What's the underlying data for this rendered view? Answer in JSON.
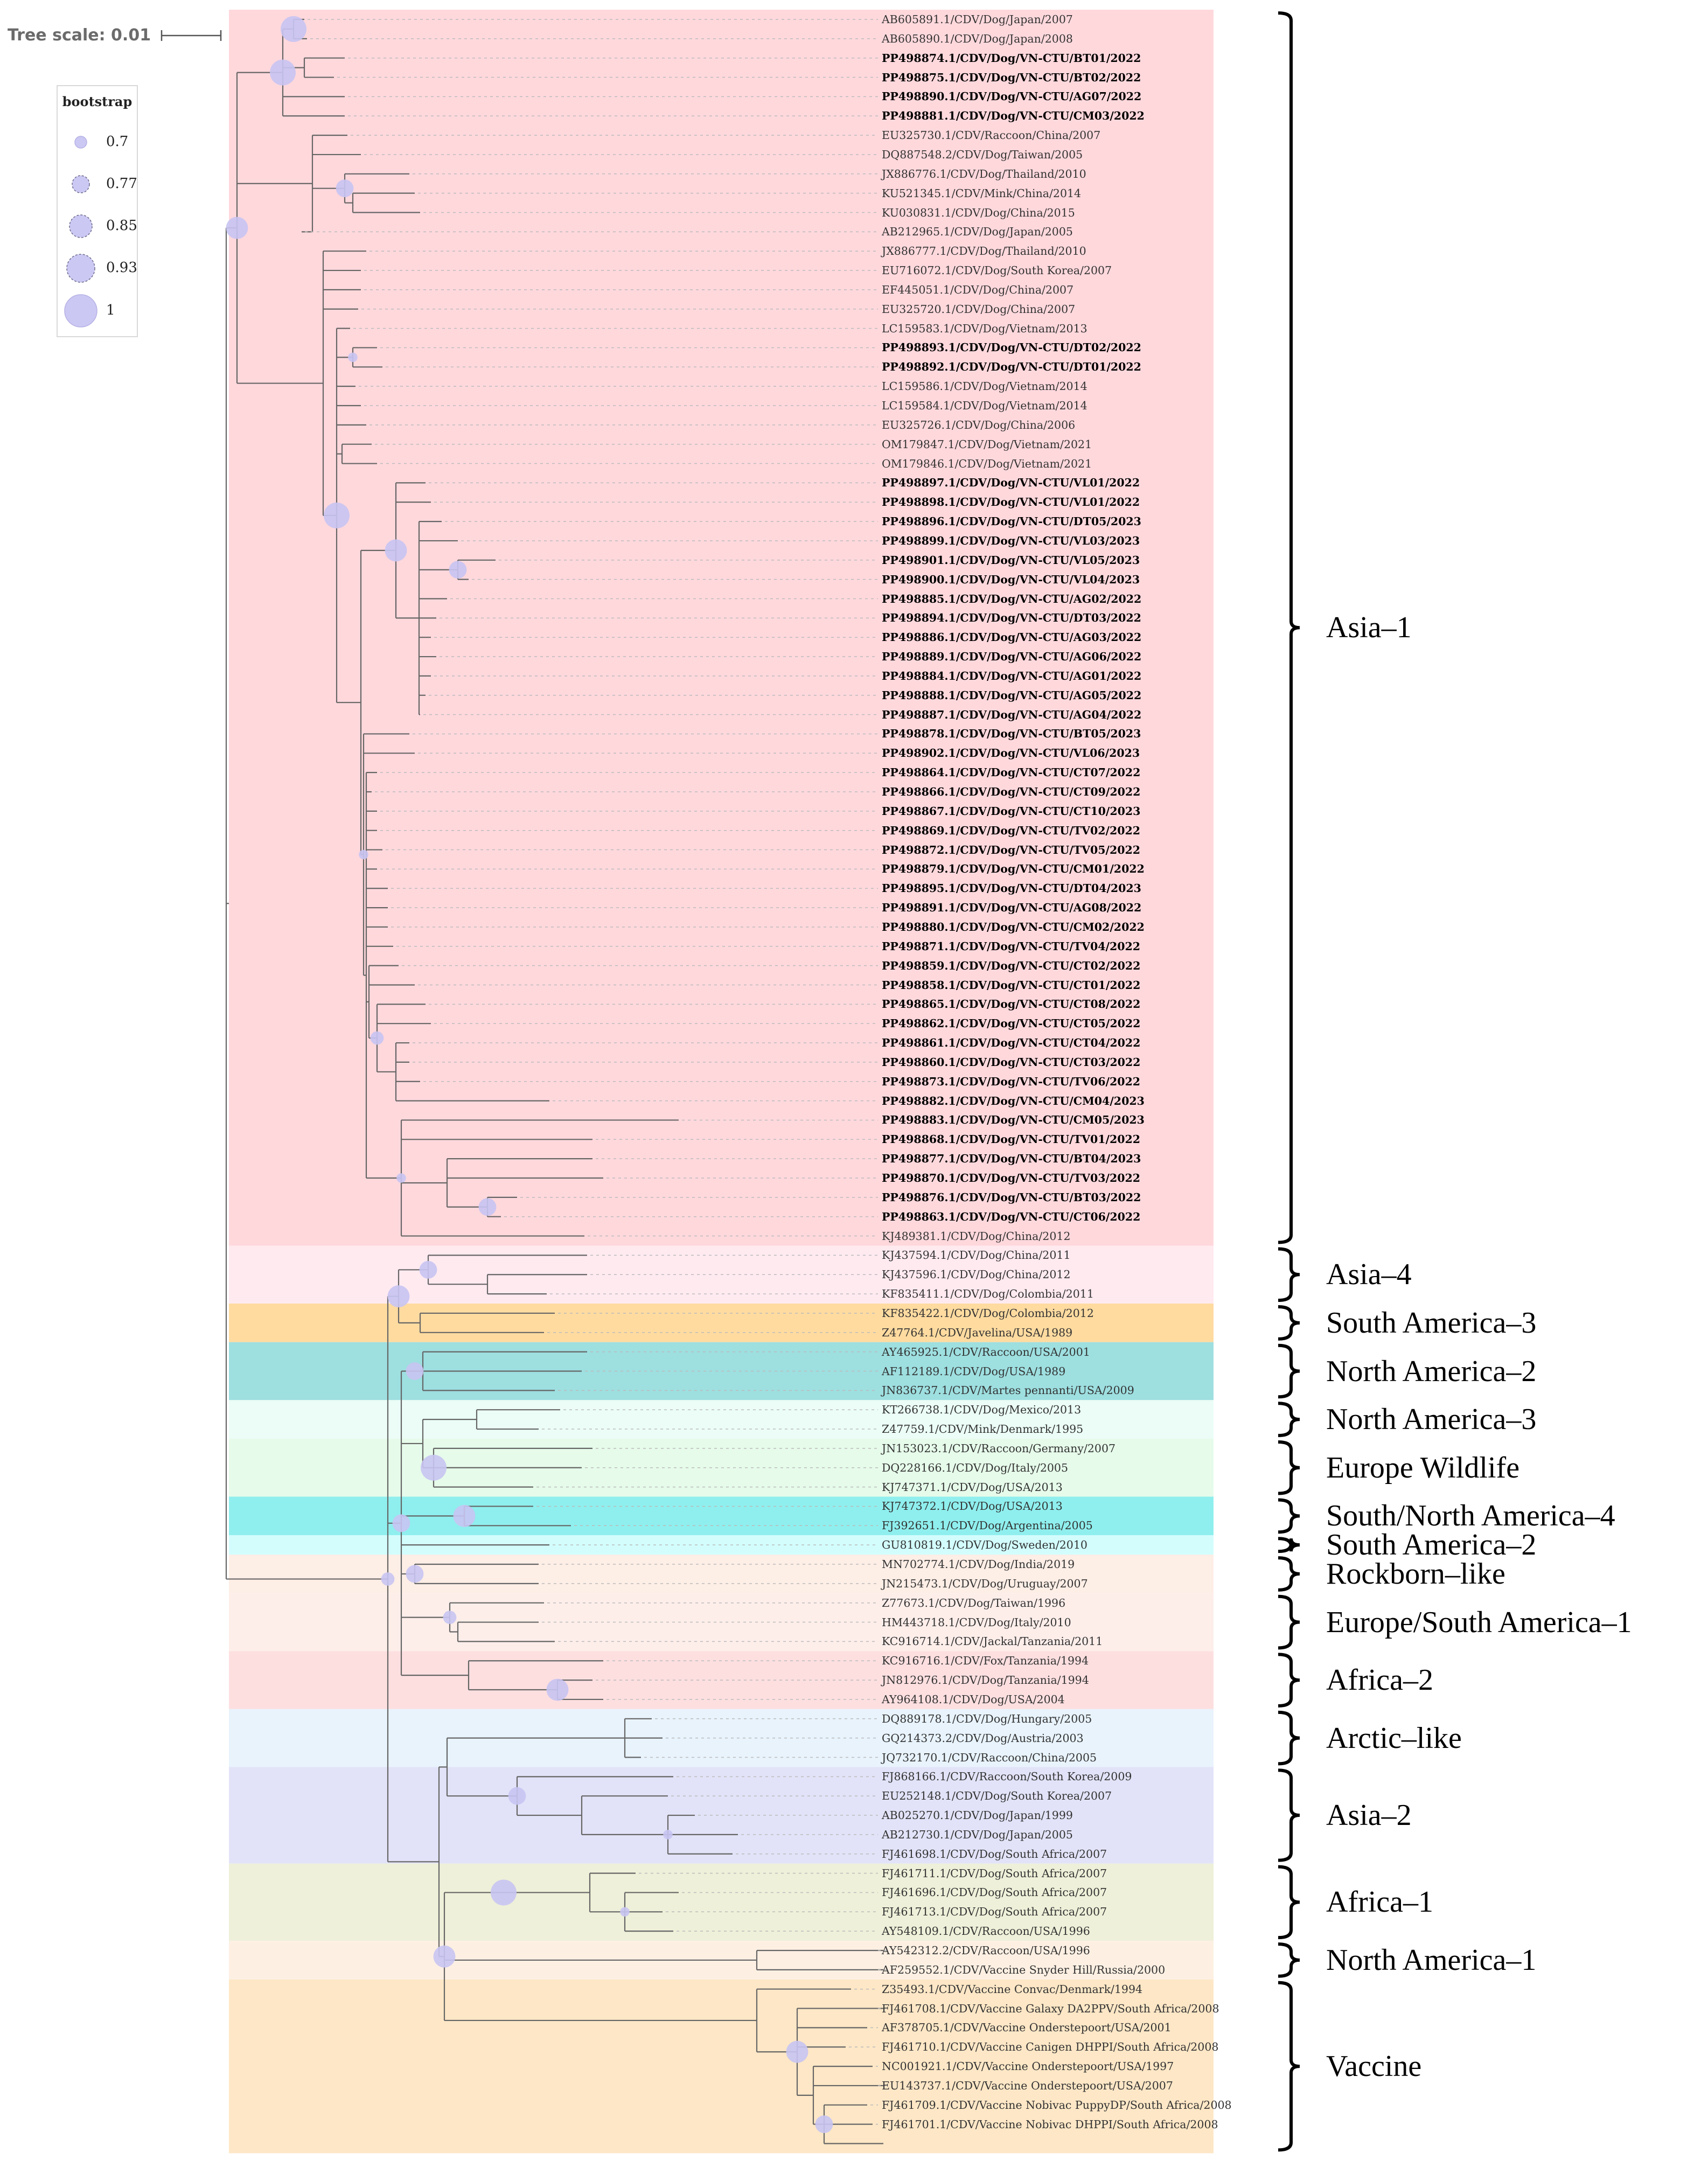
{
  "scale": {
    "title": "Tree scale: 0.01"
  },
  "legend": {
    "title": "bootstrap",
    "items": [
      {
        "label": "0.7",
        "value": 0.7
      },
      {
        "label": "0.77",
        "value": 0.77
      },
      {
        "label": "0.85",
        "value": 0.85
      },
      {
        "label": "0.93",
        "value": 0.93
      },
      {
        "label": "1",
        "value": 1
      }
    ]
  },
  "leaves": [
    {
      "name": "AB605891.1/CDV/Dog/Japan/2007",
      "bold": false
    },
    {
      "name": "AB605890.1/CDV/Dog/Japan/2008",
      "bold": false
    },
    {
      "name": "PP498874.1/CDV/Dog/VN-CTU/BT01/2022",
      "bold": true
    },
    {
      "name": "PP498875.1/CDV/Dog/VN-CTU/BT02/2022",
      "bold": true
    },
    {
      "name": "PP498890.1/CDV/Dog/VN-CTU/AG07/2022",
      "bold": true
    },
    {
      "name": "PP498881.1/CDV/Dog/VN-CTU/CM03/2022",
      "bold": true
    },
    {
      "name": "EU325730.1/CDV/Raccoon/China/2007",
      "bold": false
    },
    {
      "name": "DQ887548.2/CDV/Dog/Taiwan/2005",
      "bold": false
    },
    {
      "name": "JX886776.1/CDV/Dog/Thailand/2010",
      "bold": false
    },
    {
      "name": "KU521345.1/CDV/Mink/China/2014",
      "bold": false
    },
    {
      "name": "KU030831.1/CDV/Dog/China/2015",
      "bold": false
    },
    {
      "name": "AB212965.1/CDV/Dog/Japan/2005",
      "bold": false
    },
    {
      "name": "JX886777.1/CDV/Dog/Thailand/2010",
      "bold": false
    },
    {
      "name": "EU716072.1/CDV/Dog/South Korea/2007",
      "bold": false
    },
    {
      "name": "EF445051.1/CDV/Dog/China/2007",
      "bold": false
    },
    {
      "name": "EU325720.1/CDV/Dog/China/2007",
      "bold": false
    },
    {
      "name": "LC159583.1/CDV/Dog/Vietnam/2013",
      "bold": false
    },
    {
      "name": "PP498893.1/CDV/Dog/VN-CTU/DT02/2022",
      "bold": true
    },
    {
      "name": "PP498892.1/CDV/Dog/VN-CTU/DT01/2022",
      "bold": true
    },
    {
      "name": "LC159586.1/CDV/Dog/Vietnam/2014",
      "bold": false
    },
    {
      "name": "LC159584.1/CDV/Dog/Vietnam/2014",
      "bold": false
    },
    {
      "name": "EU325726.1/CDV/Dog/China/2006",
      "bold": false
    },
    {
      "name": "OM179847.1/CDV/Dog/Vietnam/2021",
      "bold": false
    },
    {
      "name": "OM179846.1/CDV/Dog/Vietnam/2021",
      "bold": false
    },
    {
      "name": "PP498897.1/CDV/Dog/VN-CTU/VL01/2022",
      "bold": true
    },
    {
      "name": "PP498898.1/CDV/Dog/VN-CTU/VL01/2022",
      "bold": true
    },
    {
      "name": "PP498896.1/CDV/Dog/VN-CTU/DT05/2023",
      "bold": true
    },
    {
      "name": "PP498899.1/CDV/Dog/VN-CTU/VL03/2023",
      "bold": true
    },
    {
      "name": "PP498901.1/CDV/Dog/VN-CTU/VL05/2023",
      "bold": true
    },
    {
      "name": "PP498900.1/CDV/Dog/VN-CTU/VL04/2023",
      "bold": true
    },
    {
      "name": "PP498885.1/CDV/Dog/VN-CTU/AG02/2022",
      "bold": true
    },
    {
      "name": "PP498894.1/CDV/Dog/VN-CTU/DT03/2022",
      "bold": true
    },
    {
      "name": "PP498886.1/CDV/Dog/VN-CTU/AG03/2022",
      "bold": true
    },
    {
      "name": "PP498889.1/CDV/Dog/VN-CTU/AG06/2022",
      "bold": true
    },
    {
      "name": "PP498884.1/CDV/Dog/VN-CTU/AG01/2022",
      "bold": true
    },
    {
      "name": "PP498888.1/CDV/Dog/VN-CTU/AG05/2022",
      "bold": true
    },
    {
      "name": "PP498887.1/CDV/Dog/VN-CTU/AG04/2022",
      "bold": true
    },
    {
      "name": "PP498878.1/CDV/Dog/VN-CTU/BT05/2023",
      "bold": true
    },
    {
      "name": "PP498902.1/CDV/Dog/VN-CTU/VL06/2023",
      "bold": true
    },
    {
      "name": "PP498864.1/CDV/Dog/VN-CTU/CT07/2022",
      "bold": true
    },
    {
      "name": "PP498866.1/CDV/Dog/VN-CTU/CT09/2022",
      "bold": true
    },
    {
      "name": "PP498867.1/CDV/Dog/VN-CTU/CT10/2023",
      "bold": true
    },
    {
      "name": "PP498869.1/CDV/Dog/VN-CTU/TV02/2022",
      "bold": true
    },
    {
      "name": "PP498872.1/CDV/Dog/VN-CTU/TV05/2022",
      "bold": true
    },
    {
      "name": "PP498879.1/CDV/Dog/VN-CTU/CM01/2022",
      "bold": true
    },
    {
      "name": "PP498895.1/CDV/Dog/VN-CTU/DT04/2023",
      "bold": true
    },
    {
      "name": "PP498891.1/CDV/Dog/VN-CTU/AG08/2022",
      "bold": true
    },
    {
      "name": "PP498880.1/CDV/Dog/VN-CTU/CM02/2022",
      "bold": true
    },
    {
      "name": "PP498871.1/CDV/Dog/VN-CTU/TV04/2022",
      "bold": true
    },
    {
      "name": "PP498859.1/CDV/Dog/VN-CTU/CT02/2022",
      "bold": true
    },
    {
      "name": "PP498858.1/CDV/Dog/VN-CTU/CT01/2022",
      "bold": true
    },
    {
      "name": "PP498865.1/CDV/Dog/VN-CTU/CT08/2022",
      "bold": true
    },
    {
      "name": "PP498862.1/CDV/Dog/VN-CTU/CT05/2022",
      "bold": true
    },
    {
      "name": "PP498861.1/CDV/Dog/VN-CTU/CT04/2022",
      "bold": true
    },
    {
      "name": "PP498860.1/CDV/Dog/VN-CTU/CT03/2022",
      "bold": true
    },
    {
      "name": "PP498873.1/CDV/Dog/VN-CTU/TV06/2022",
      "bold": true
    },
    {
      "name": "PP498882.1/CDV/Dog/VN-CTU/CM04/2023",
      "bold": true
    },
    {
      "name": "PP498883.1/CDV/Dog/VN-CTU/CM05/2023",
      "bold": true
    },
    {
      "name": "PP498868.1/CDV/Dog/VN-CTU/TV01/2022",
      "bold": true
    },
    {
      "name": "PP498877.1/CDV/Dog/VN-CTU/BT04/2023",
      "bold": true
    },
    {
      "name": "PP498870.1/CDV/Dog/VN-CTU/TV03/2022",
      "bold": true
    },
    {
      "name": "PP498876.1/CDV/Dog/VN-CTU/BT03/2022",
      "bold": true
    },
    {
      "name": "PP498863.1/CDV/Dog/VN-CTU/CT06/2022",
      "bold": true
    },
    {
      "name": "KJ489381.1/CDV/Dog/China/2012",
      "bold": false
    },
    {
      "name": "KJ437594.1/CDV/Dog/China/2011",
      "bold": false
    },
    {
      "name": "KJ437596.1/CDV/Dog/China/2012",
      "bold": false
    },
    {
      "name": "KF835411.1/CDV/Dog/Colombia/2011",
      "bold": false
    },
    {
      "name": "KF835422.1/CDV/Dog/Colombia/2012",
      "bold": false
    },
    {
      "name": "Z47764.1/CDV/Javelina/USA/1989",
      "bold": false
    },
    {
      "name": "AY465925.1/CDV/Raccoon/USA/2001",
      "bold": false
    },
    {
      "name": "AF112189.1/CDV/Dog/USA/1989",
      "bold": false
    },
    {
      "name": "JN836737.1/CDV/Martes pennanti/USA/2009",
      "bold": false
    },
    {
      "name": "KT266738.1/CDV/Dog/Mexico/2013",
      "bold": false
    },
    {
      "name": "Z47759.1/CDV/Mink/Denmark/1995",
      "bold": false
    },
    {
      "name": "JN153023.1/CDV/Raccoon/Germany/2007",
      "bold": false
    },
    {
      "name": "DQ228166.1/CDV/Dog/Italy/2005",
      "bold": false
    },
    {
      "name": "KJ747371.1/CDV/Dog/USA/2013",
      "bold": false
    },
    {
      "name": "KJ747372.1/CDV/Dog/USA/2013",
      "bold": false
    },
    {
      "name": "FJ392651.1/CDV/Dog/Argentina/2005",
      "bold": false
    },
    {
      "name": "GU810819.1/CDV/Dog/Sweden/2010",
      "bold": false
    },
    {
      "name": "MN702774.1/CDV/Dog/India/2019",
      "bold": false
    },
    {
      "name": "JN215473.1/CDV/Dog/Uruguay/2007",
      "bold": false
    },
    {
      "name": "Z77673.1/CDV/Dog/Taiwan/1996",
      "bold": false
    },
    {
      "name": "HM443718.1/CDV/Dog/Italy/2010",
      "bold": false
    },
    {
      "name": "KC916714.1/CDV/Jackal/Tanzania/2011",
      "bold": false
    },
    {
      "name": "KC916716.1/CDV/Fox/Tanzania/1994",
      "bold": false
    },
    {
      "name": "JN812976.1/CDV/Dog/Tanzania/1994",
      "bold": false
    },
    {
      "name": "AY964108.1/CDV/Dog/USA/2004",
      "bold": false
    },
    {
      "name": "DQ889178.1/CDV/Dog/Hungary/2005",
      "bold": false
    },
    {
      "name": "GQ214373.2/CDV/Dog/Austria/2003",
      "bold": false
    },
    {
      "name": "JQ732170.1/CDV/Raccoon/China/2005",
      "bold": false
    },
    {
      "name": "FJ868166.1/CDV/Raccoon/South Korea/2009",
      "bold": false
    },
    {
      "name": "EU252148.1/CDV/Dog/South Korea/2007",
      "bold": false
    },
    {
      "name": "AB025270.1/CDV/Dog/Japan/1999",
      "bold": false
    },
    {
      "name": "AB212730.1/CDV/Dog/Japan/2005",
      "bold": false
    },
    {
      "name": "FJ461698.1/CDV/Dog/South Africa/2007",
      "bold": false
    },
    {
      "name": "FJ461711.1/CDV/Dog/South Africa/2007",
      "bold": false
    },
    {
      "name": "FJ461696.1/CDV/Dog/South Africa/2007",
      "bold": false
    },
    {
      "name": "FJ461713.1/CDV/Dog/South Africa/2007",
      "bold": false
    },
    {
      "name": "AY548109.1/CDV/Raccoon/USA/1996",
      "bold": false
    },
    {
      "name": "AY542312.2/CDV/Raccoon/USA/1996",
      "bold": false
    },
    {
      "name": "AF259552.1/CDV/Vaccine Snyder Hill/Russia/2000",
      "bold": false
    },
    {
      "name": "Z35493.1/CDV/Vaccine Convac/Denmark/1994",
      "bold": false
    },
    {
      "name": "FJ461708.1/CDV/Vaccine Galaxy DA2PPV/South Africa/2008",
      "bold": false
    },
    {
      "name": "AF378705.1/CDV/Vaccine Onderstepoort/USA/2001",
      "bold": false
    },
    {
      "name": "FJ461710.1/CDV/Vaccine Canigen DHPPI/South Africa/2008",
      "bold": false
    },
    {
      "name": "NC001921.1/CDV/Vaccine Onderstepoort/USA/1997",
      "bold": false
    },
    {
      "name": "EU143737.1/CDV/Vaccine Onderstepoort/USA/2007",
      "bold": false
    },
    {
      "name": "FJ461709.1/CDV/Vaccine Nobivac PuppyDP/South Africa/2008",
      "bold": false
    },
    {
      "name": "FJ461701.1/CDV/Vaccine Nobivac DHPPI/South Africa/2008",
      "bold": false
    }
  ],
  "clades": [
    {
      "label": "Asia–1",
      "start": 0,
      "end": 63,
      "color": "#ffd8dc"
    },
    {
      "label": "Asia–4",
      "start": 64,
      "end": 66,
      "color": "#ffeaf0"
    },
    {
      "label": "South America–3",
      "start": 67,
      "end": 68,
      "color": "#ffdba0"
    },
    {
      "label": "North America–2",
      "start": 69,
      "end": 71,
      "color": "#9edfe0"
    },
    {
      "label": "North America–3",
      "start": 72,
      "end": 73,
      "color": "#ebfdf6"
    },
    {
      "label": "Europe Wildlife",
      "start": 74,
      "end": 76,
      "color": "#e6fbea"
    },
    {
      "label": "South/North America–4",
      "start": 77,
      "end": 78,
      "color": "#8fefee"
    },
    {
      "label": "South America–2",
      "start": 79,
      "end": 79,
      "color": "#d3fdfd"
    },
    {
      "label": "Rockborn–like",
      "start": 80,
      "end": 81,
      "color": "#fdeee6"
    },
    {
      "label": "Europe/South America–1",
      "start": 82,
      "end": 84,
      "color": "#fdeeea"
    },
    {
      "label": "Africa–2",
      "start": 85,
      "end": 87,
      "color": "#fddfe0"
    },
    {
      "label": "Arctic–like",
      "start": 88,
      "end": 90,
      "color": "#e8f3fc"
    },
    {
      "label": "Asia–2",
      "start": 91,
      "end": 95,
      "color": "#e2e3f8"
    },
    {
      "label": "Africa–1",
      "start": 96,
      "end": 99,
      "color": "#eef0d9"
    },
    {
      "label": "North America–1",
      "start": 100,
      "end": 101,
      "color": "#fdf0e3"
    },
    {
      "label": "Vaccine",
      "start": 102,
      "end": 110,
      "color": "#fde7c6"
    }
  ],
  "bootstrap_support": [
    1,
    1,
    0.85,
    0.7,
    0.85,
    0.93,
    0.77,
    0.85,
    0.7,
    0.7,
    1,
    0.93,
    0.85,
    0.93,
    0.85,
    1,
    0.93,
    0.85,
    0.77,
    0.93,
    0.85,
    0.7,
    0.85,
    0.7,
    1,
    0.85,
    0.93,
    0.93,
    0.77,
    0.85,
    1,
    1,
    0.77,
    0.85,
    0.7,
    0.85,
    0.93,
    0.85,
    0.77,
    0.93,
    0.7,
    0.85
  ]
}
